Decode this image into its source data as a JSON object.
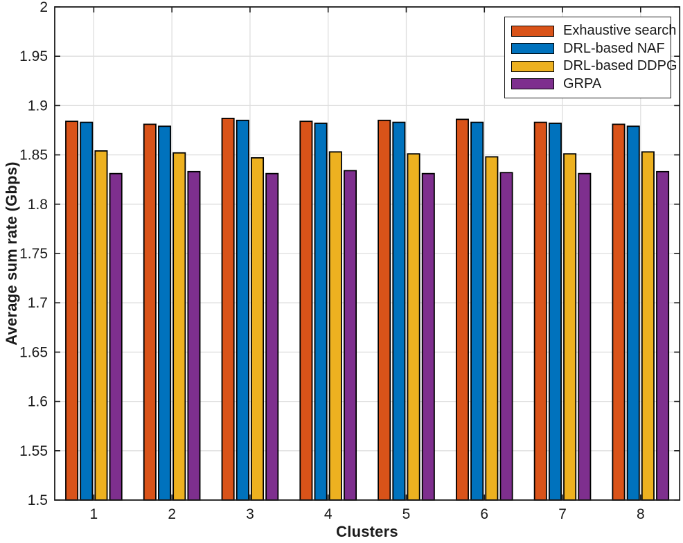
{
  "chart_data": {
    "type": "bar",
    "title": "",
    "xlabel": "Clusters",
    "ylabel": "Average sum rate (Gbps)",
    "categories": [
      "1",
      "2",
      "3",
      "4",
      "5",
      "6",
      "7",
      "8"
    ],
    "ylim": [
      1.5,
      2.0
    ],
    "ytick_step": 0.05,
    "grid": true,
    "legend_position": "top-right",
    "axis_color": "#1a1a1a",
    "grid_color": "#dedede",
    "series": [
      {
        "name": "Exhaustive search",
        "color": "#D95319",
        "values": [
          1.884,
          1.881,
          1.887,
          1.884,
          1.885,
          1.886,
          1.883,
          1.881
        ]
      },
      {
        "name": "DRL-based NAF",
        "color": "#0072BD",
        "values": [
          1.883,
          1.879,
          1.885,
          1.882,
          1.883,
          1.883,
          1.882,
          1.879
        ]
      },
      {
        "name": "DRL-based DDPG",
        "color": "#EDB120",
        "values": [
          1.854,
          1.852,
          1.847,
          1.853,
          1.851,
          1.848,
          1.851,
          1.853
        ]
      },
      {
        "name": "GRPA",
        "color": "#7E2F8E",
        "values": [
          1.831,
          1.833,
          1.831,
          1.834,
          1.831,
          1.832,
          1.831,
          1.833
        ]
      }
    ]
  }
}
